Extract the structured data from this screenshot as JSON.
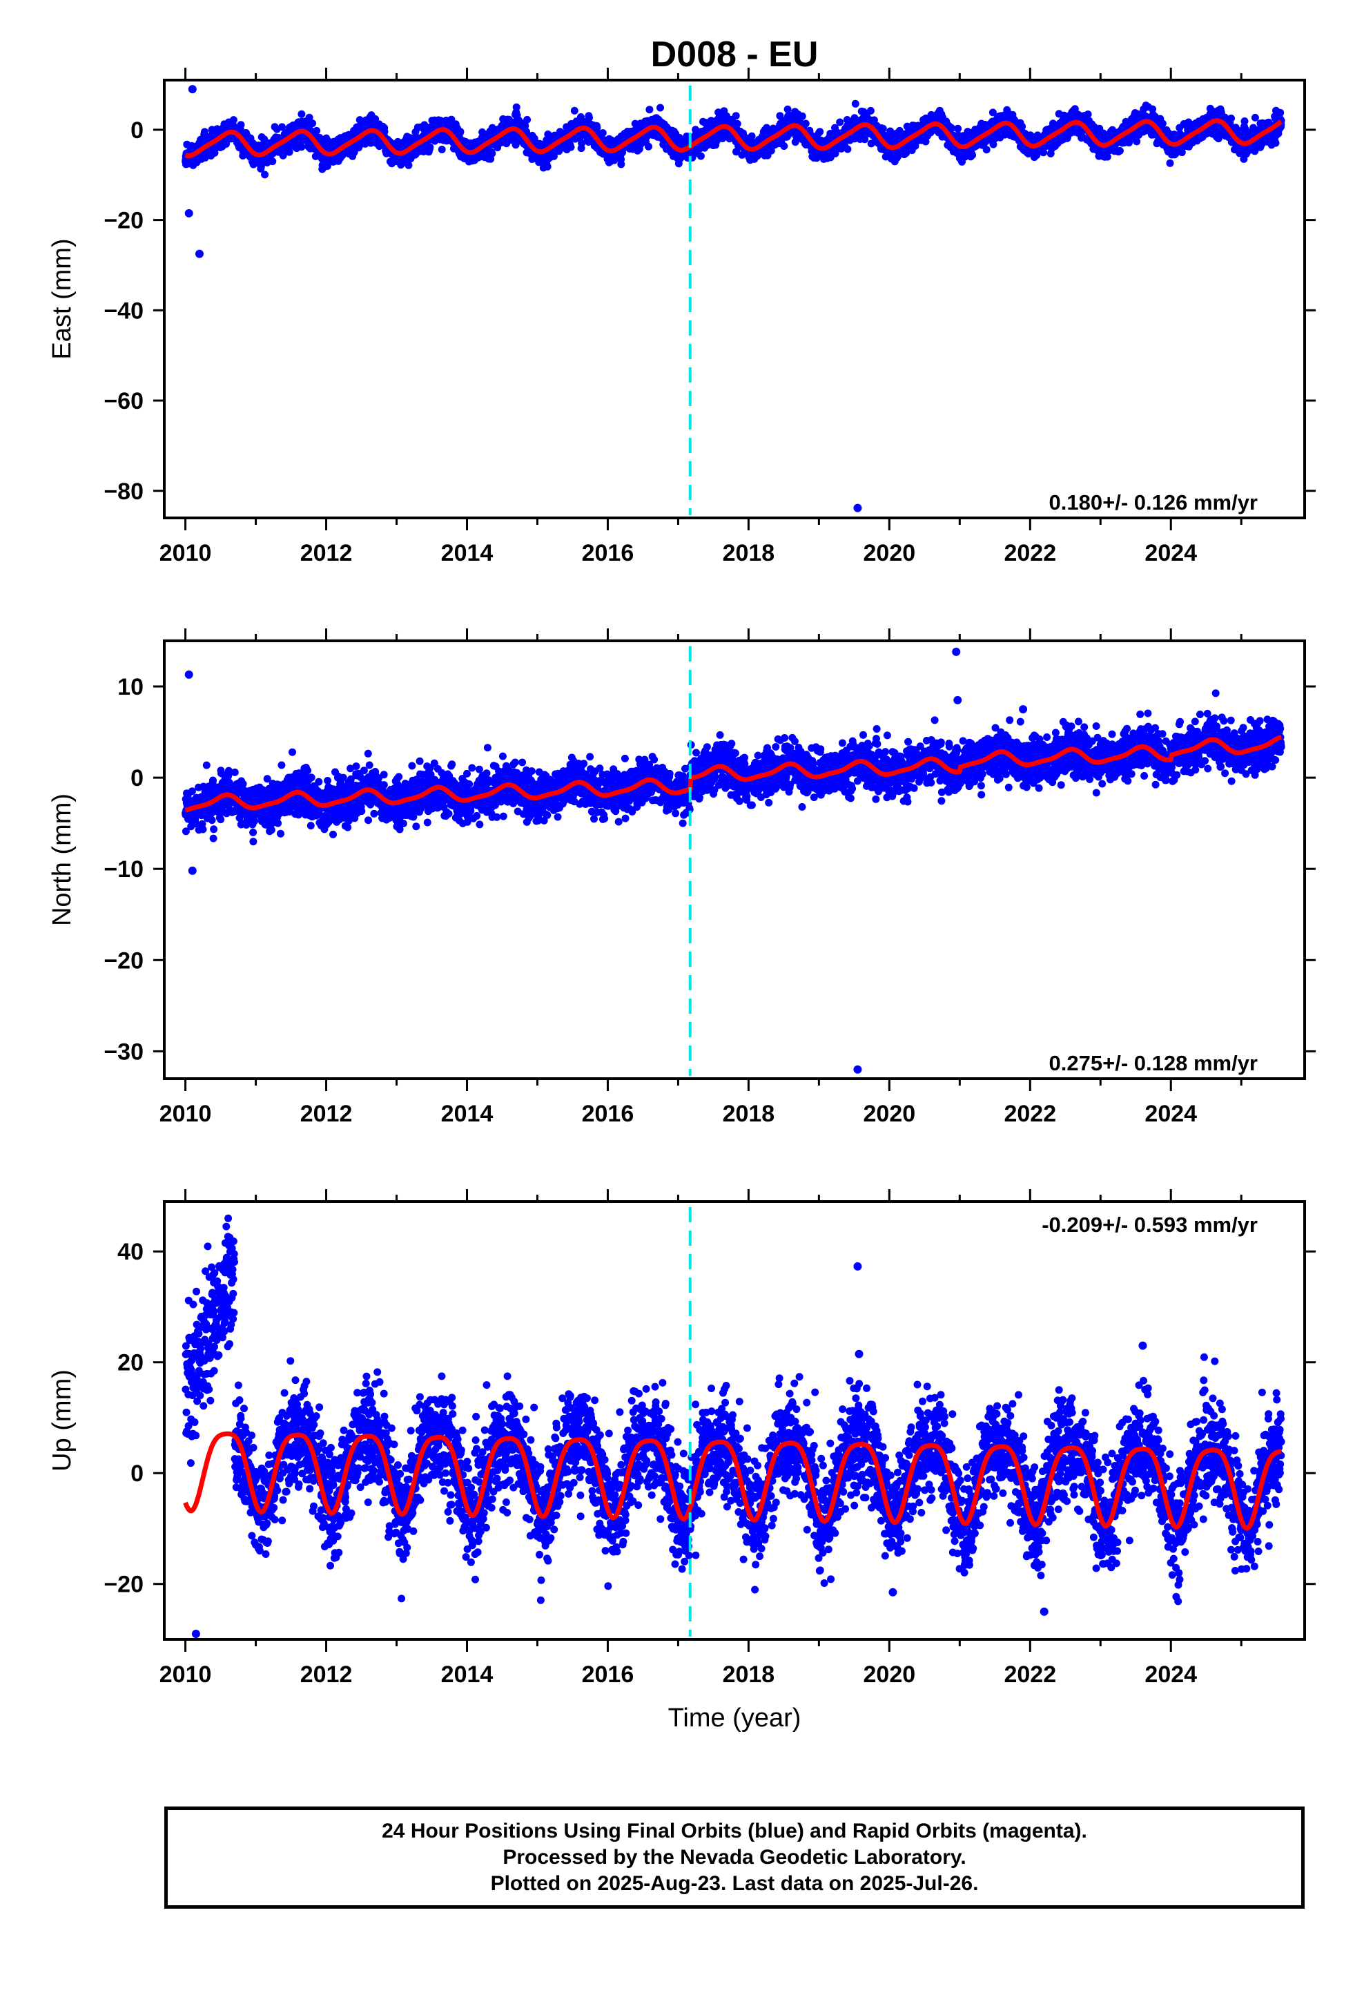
{
  "title": "D008 - EU",
  "footer": {
    "lines": [
      "24 Hour Positions Using Final Orbits (blue) and Rapid Orbits (magenta).",
      "Processed by the Nevada Geodetic Laboratory.",
      "Plotted on 2025-Aug-23. Last data on 2025-Jul-26."
    ]
  },
  "colors": {
    "final_orbits": "#0000ff",
    "model": "#ff0000",
    "equipment_change": "#00e5e5",
    "axes": "#000000"
  },
  "chart_data": [
    {
      "type": "scatter",
      "component": "east",
      "ylabel": "East (mm)",
      "xlim": [
        2009.7,
        2025.9
      ],
      "ylim": [
        -86,
        11
      ],
      "xticks": [
        2010,
        2012,
        2014,
        2016,
        2018,
        2020,
        2022,
        2024
      ],
      "yticks": [
        0,
        -20,
        -40,
        -60,
        -80
      ],
      "rate_text": "0.180+/- 0.126 mm/yr",
      "rate_position": "bottom-right",
      "equipment_change_year": 2017.17,
      "model": {
        "offset": -3.2,
        "rate": 0.18,
        "annual_amplitude": 2.4,
        "annual_phase": 0.35,
        "semiannual_amplitude": 0.5,
        "semiannual_phase": 0.1,
        "breaks": []
      },
      "scatter_std": 1.3,
      "outliers": [
        {
          "x": 2010.1,
          "y": 9.0
        },
        {
          "x": 2010.05,
          "y": -18.5
        },
        {
          "x": 2010.2,
          "y": -27.5
        },
        {
          "x": 2019.55,
          "y": -83.8
        }
      ]
    },
    {
      "type": "scatter",
      "component": "north",
      "ylabel": "North (mm)",
      "xlim": [
        2009.7,
        2025.9
      ],
      "ylim": [
        -33,
        15
      ],
      "xticks": [
        2010,
        2012,
        2014,
        2016,
        2018,
        2020,
        2022,
        2024
      ],
      "yticks": [
        10,
        0,
        -10,
        -20,
        -30
      ],
      "rate_text": "0.275+/- 0.128 mm/yr",
      "rate_position": "bottom-right",
      "equipment_change_year": 2017.17,
      "model": {
        "offset": -2.9,
        "rate": 0.275,
        "annual_amplitude": 0.7,
        "annual_phase": 0.3,
        "semiannual_amplitude": 0.2,
        "semiannual_phase": 0.0,
        "breaks": [
          {
            "x": 2017.17,
            "step": 1.2
          },
          {
            "x": 2021.0,
            "step": 0.5
          },
          {
            "x": 2024.0,
            "step": 0.5
          }
        ]
      },
      "scatter_std": 1.2,
      "outliers": [
        {
          "x": 2010.05,
          "y": 11.3
        },
        {
          "x": 2010.1,
          "y": -10.2
        },
        {
          "x": 2020.95,
          "y": 13.8
        },
        {
          "x": 2020.97,
          "y": 8.5
        },
        {
          "x": 2021.9,
          "y": 7.5
        },
        {
          "x": 2019.55,
          "y": -32.0
        }
      ]
    },
    {
      "type": "scatter",
      "component": "up",
      "ylabel": "Up (mm)",
      "xlabel": "Time (year)",
      "xlim": [
        2009.7,
        2025.9
      ],
      "ylim": [
        -30,
        49
      ],
      "xticks": [
        2010,
        2012,
        2014,
        2016,
        2018,
        2020,
        2022,
        2024
      ],
      "yticks": [
        40,
        20,
        0,
        -20
      ],
      "rate_text": "-0.209+/- 0.593 mm/yr",
      "rate_position": "top-right",
      "equipment_change_year": 2017.17,
      "model": {
        "offset": 1.7,
        "rate": -0.209,
        "annual_amplitude": 7.0,
        "annual_phase": 0.33,
        "semiannual_amplitude": 1.5,
        "semiannual_phase": 0.2,
        "breaks": []
      },
      "scatter_std": 4.5,
      "outliers": [
        {
          "x": 2010.15,
          "y": -29.0
        },
        {
          "x": 2019.55,
          "y": 37.3
        },
        {
          "x": 2019.57,
          "y": 21.5
        },
        {
          "x": 2020.05,
          "y": -21.5
        },
        {
          "x": 2022.2,
          "y": -25.0
        },
        {
          "x": 2023.6,
          "y": 23.0
        }
      ],
      "early_excursion": {
        "x_start": 2010.0,
        "x_end": 2010.7,
        "y_start": 15,
        "y_end": 35
      }
    }
  ]
}
